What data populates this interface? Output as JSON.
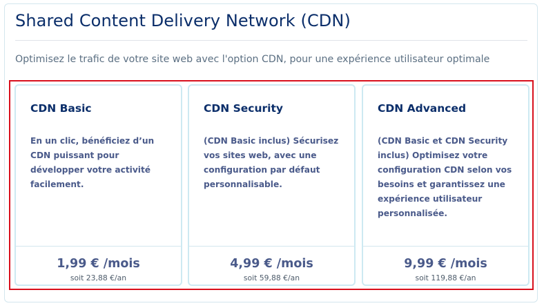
{
  "header": {
    "title": "Shared Content Delivery Network (CDN)",
    "subtitle": "Optimisez le trafic de votre site web avec l'option CDN, pour une expérience utilisateur optimale"
  },
  "plans": [
    {
      "name": "CDN Basic",
      "description": "En un clic, bénéficiez d’un CDN puissant pour développer votre activité facilement.",
      "price": "1,99 € /mois",
      "price_year": "soit 23,88 €/an"
    },
    {
      "name": "CDN Security",
      "description": "(CDN Basic inclus) Sécurisez vos sites web, avec une configuration par défaut personnalisable.",
      "price": "4,99 € /mois",
      "price_year": "soit 59,88 €/an"
    },
    {
      "name": "CDN Advanced",
      "description": "(CDN Basic et CDN Security inclus) Optimisez votre configuration CDN selon vos besoins et garantissez une expérience utilisateur personnalisée.",
      "price": "9,99 € /mois",
      "price_year": "soit 119,88 €/an"
    }
  ],
  "colors": {
    "title": "#0b2e6a",
    "selection_border": "#d80f1c",
    "card_border": "#cde9f2",
    "text": "#4a5a8a"
  }
}
